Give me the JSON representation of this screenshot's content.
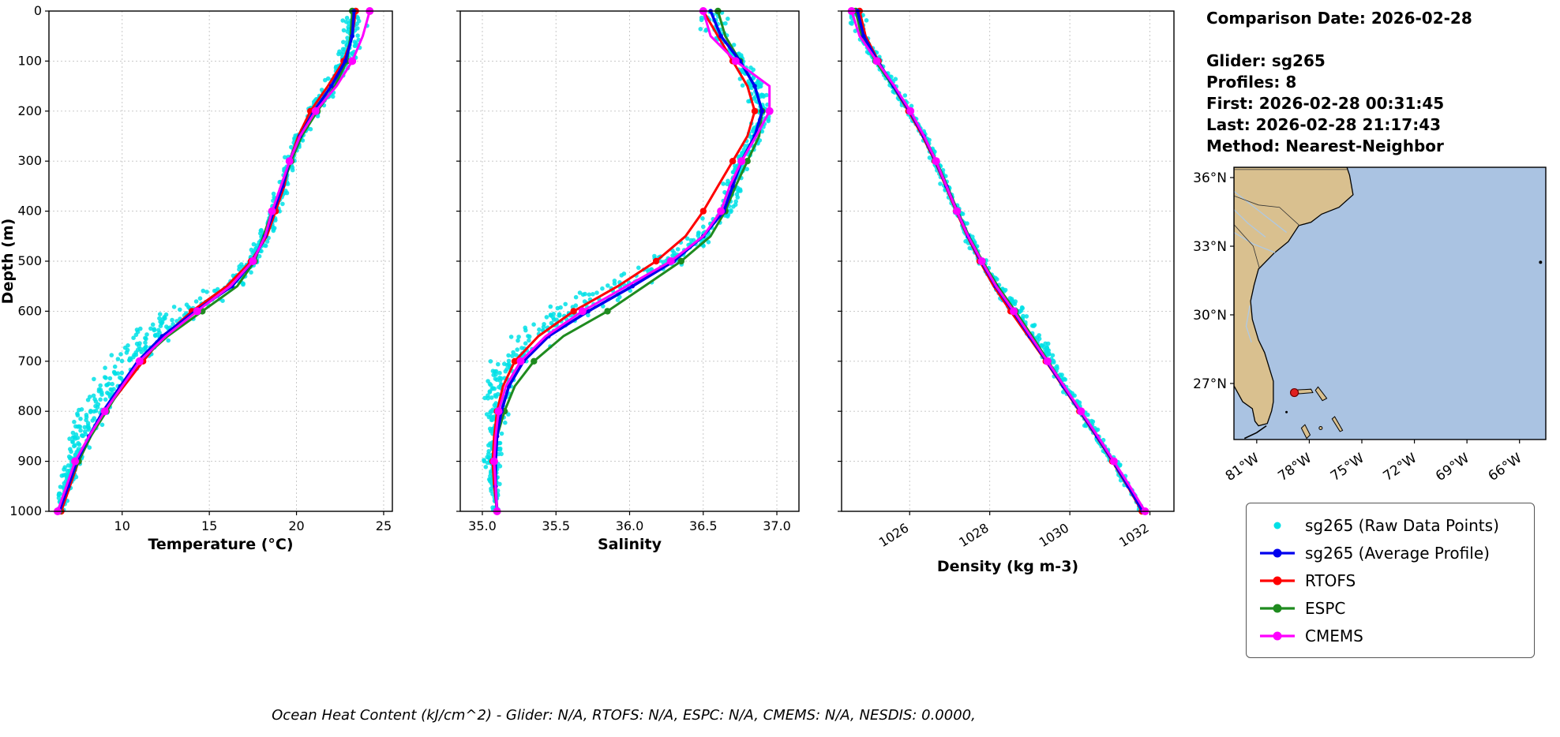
{
  "info": {
    "title": "Comparison Date: 2026-02-28",
    "glider": "Glider: sg265",
    "profiles": "Profiles: 8",
    "first": "First: 2026-02-28 00:31:45",
    "last": "Last: 2026-02-28 21:17:43",
    "method": "Method: Nearest-Neighbor"
  },
  "footer": {
    "text": "Ocean Heat Content (kJ/cm^2) - Glider: N/A,  RTOFS: N/A,  ESPC: N/A,  CMEMS: N/A,  NESDIS: 0.0000,"
  },
  "legend": {
    "items": [
      {
        "label": "sg265 (Raw Data Points)",
        "color": "#00e0e6",
        "marker": "dot"
      },
      {
        "label": "sg265 (Average Profile)",
        "color": "#0000ee",
        "marker": "line-dot"
      },
      {
        "label": "RTOFS",
        "color": "#ff0000",
        "marker": "line-dot"
      },
      {
        "label": "ESPC",
        "color": "#1f8b1f",
        "marker": "line-dot"
      },
      {
        "label": "CMEMS",
        "color": "#ff00ff",
        "marker": "line-dot"
      }
    ]
  },
  "map": {
    "extent": {
      "lon_min": -82.3,
      "lon_max": -64.5,
      "lat_min": 24.55,
      "lat_max": 36.45
    },
    "lat_ticks": [
      {
        "v": 36,
        "label": "36°N"
      },
      {
        "v": 33,
        "label": "33°N"
      },
      {
        "v": 30,
        "label": "30°N"
      },
      {
        "v": 27,
        "label": "27°N"
      }
    ],
    "lon_ticks": [
      {
        "v": -81,
        "label": "81°W"
      },
      {
        "v": -78,
        "label": "78°W"
      },
      {
        "v": -75,
        "label": "75°W"
      },
      {
        "v": -72,
        "label": "72°W"
      },
      {
        "v": -69,
        "label": "69°W"
      },
      {
        "v": -66,
        "label": "66°W"
      }
    ],
    "colors": {
      "ocean": "#aac3e2",
      "land": "#d9c08f",
      "coast": "#000000",
      "river": "#b0c8e0",
      "border": "#333333",
      "marker": "#e02020",
      "marker_edge": "#700000"
    },
    "marker": {
      "lon": -78.85,
      "lat": 26.6
    }
  },
  "chart_data": [
    {
      "id": "temperature",
      "type": "line",
      "xlabel": "Temperature (°C)",
      "ylabel": "Depth (m)",
      "xlim": [
        5.8,
        25.5
      ],
      "ylim": [
        0,
        1000
      ],
      "xticks": [
        {
          "v": 10,
          "label": "10"
        },
        {
          "v": 15,
          "label": "15"
        },
        {
          "v": 20,
          "label": "20"
        },
        {
          "v": 25,
          "label": "25"
        }
      ],
      "yticks": [
        {
          "v": 0,
          "label": "0"
        },
        {
          "v": 100,
          "label": "100"
        },
        {
          "v": 200,
          "label": "200"
        },
        {
          "v": 300,
          "label": "300"
        },
        {
          "v": 400,
          "label": "400"
        },
        {
          "v": 500,
          "label": "500"
        },
        {
          "v": 600,
          "label": "600"
        },
        {
          "v": 700,
          "label": "700"
        },
        {
          "v": 800,
          "label": "800"
        },
        {
          "v": 900,
          "label": "900"
        },
        {
          "v": 1000,
          "label": "1000"
        }
      ],
      "depths": [
        0,
        50,
        100,
        150,
        200,
        250,
        300,
        350,
        400,
        450,
        500,
        550,
        600,
        650,
        700,
        750,
        800,
        850,
        900,
        950,
        1000
      ],
      "series": [
        {
          "name": "RTOFS",
          "color": "#ff0000",
          "width": 3,
          "marker_every": 2,
          "marker_r": 4.2,
          "values": [
            23.4,
            23.2,
            22.7,
            21.8,
            20.8,
            20.1,
            19.6,
            19.3,
            18.8,
            18.3,
            17.4,
            16.0,
            14.0,
            12.4,
            11.2,
            10.1,
            9.0,
            8.2,
            7.5,
            7.0,
            6.5
          ]
        },
        {
          "name": "ESPC",
          "color": "#1f8b1f",
          "width": 3,
          "marker_every": 2,
          "marker_r": 4.2,
          "values": [
            23.2,
            23.1,
            22.9,
            22.2,
            21.2,
            20.3,
            19.7,
            19.2,
            18.6,
            18.1,
            17.6,
            16.6,
            14.6,
            12.6,
            11.0,
            10.0,
            9.1,
            8.2,
            7.5,
            6.9,
            6.4
          ]
        },
        {
          "name": "sg265 (Average Profile)",
          "color": "#0000ee",
          "width": 3.5,
          "marker_every": 1,
          "marker_r": 2.8,
          "values": [
            23.3,
            23.2,
            22.8,
            22.0,
            21.0,
            20.2,
            19.6,
            19.2,
            18.7,
            18.2,
            17.5,
            16.3,
            14.2,
            12.3,
            10.9,
            9.9,
            8.9,
            8.1,
            7.4,
            6.9,
            6.4
          ]
        },
        {
          "name": "CMEMS",
          "color": "#ff00ff",
          "width": 3,
          "marker_every": 2,
          "marker_r": 5,
          "values": [
            24.2,
            23.8,
            23.2,
            22.3,
            21.1,
            20.2,
            19.6,
            19.1,
            18.6,
            18.2,
            17.5,
            16.2,
            14.3,
            12.5,
            11.0,
            10.0,
            9.0,
            8.1,
            7.3,
            6.8,
            6.3
          ]
        }
      ],
      "raw": {
        "name": "sg265 (Raw Data Points)",
        "color": "#00e0e6",
        "n": 650,
        "base": "sg265 (Average Profile)",
        "offset": [
          0,
          0,
          0,
          0,
          0,
          0,
          0,
          0,
          0,
          0,
          0,
          -0.2,
          -0.6,
          -0.8,
          -0.7,
          -0.6,
          -0.6,
          -0.4,
          -0.2,
          -0.1,
          0
        ],
        "spread": [
          0.8,
          0.5,
          0.4,
          0.35,
          0.3,
          0.28,
          0.25,
          0.25,
          0.3,
          0.3,
          0.35,
          0.7,
          1.0,
          0.9,
          0.8,
          0.75,
          0.7,
          0.6,
          0.4,
          0.3,
          0.2
        ]
      }
    },
    {
      "id": "salinity",
      "type": "line",
      "xlabel": "Salinity",
      "ylabel": "Depth (m)",
      "xlim": [
        34.85,
        37.15
      ],
      "ylim": [
        0,
        1000
      ],
      "xticks": [
        {
          "v": 35.0,
          "label": "35.0"
        },
        {
          "v": 35.5,
          "label": "35.5"
        },
        {
          "v": 36.0,
          "label": "36.0"
        },
        {
          "v": 36.5,
          "label": "36.5"
        },
        {
          "v": 37.0,
          "label": "37.0"
        }
      ],
      "yticks": [
        {
          "v": 0,
          "label": "0"
        },
        {
          "v": 100,
          "label": "100"
        },
        {
          "v": 200,
          "label": "200"
        },
        {
          "v": 300,
          "label": "300"
        },
        {
          "v": 400,
          "label": "400"
        },
        {
          "v": 500,
          "label": "500"
        },
        {
          "v": 600,
          "label": "600"
        },
        {
          "v": 700,
          "label": "700"
        },
        {
          "v": 800,
          "label": "800"
        },
        {
          "v": 900,
          "label": "900"
        },
        {
          "v": 1000,
          "label": "1000"
        }
      ],
      "depths": [
        0,
        50,
        100,
        150,
        200,
        250,
        300,
        350,
        400,
        450,
        500,
        550,
        600,
        650,
        700,
        750,
        800,
        850,
        900,
        950,
        1000
      ],
      "series": [
        {
          "name": "RTOFS",
          "color": "#ff0000",
          "width": 3,
          "marker_every": 2,
          "marker_r": 4.2,
          "values": [
            36.5,
            36.6,
            36.7,
            36.8,
            36.85,
            36.8,
            36.7,
            36.6,
            36.5,
            36.38,
            36.18,
            35.92,
            35.62,
            35.38,
            35.22,
            35.14,
            35.1,
            35.08,
            35.07,
            35.08,
            35.1
          ]
        },
        {
          "name": "ESPC",
          "color": "#1f8b1f",
          "width": 3,
          "marker_every": 2,
          "marker_r": 4.2,
          "values": [
            36.6,
            36.65,
            36.75,
            36.85,
            36.9,
            36.88,
            36.8,
            36.72,
            36.65,
            36.55,
            36.35,
            36.1,
            35.85,
            35.55,
            35.35,
            35.22,
            35.15,
            35.1,
            35.08,
            35.09,
            35.1
          ]
        },
        {
          "name": "sg265 (Average Profile)",
          "color": "#0000ee",
          "width": 3.5,
          "marker_every": 1,
          "marker_r": 2.8,
          "values": [
            36.55,
            36.62,
            36.75,
            36.85,
            36.9,
            36.85,
            36.76,
            36.7,
            36.64,
            36.5,
            36.3,
            36.02,
            35.72,
            35.45,
            35.28,
            35.18,
            35.13,
            35.1,
            35.09,
            35.09,
            35.1
          ]
        },
        {
          "name": "CMEMS",
          "color": "#ff00ff",
          "width": 3,
          "marker_every": 2,
          "marker_r": 5,
          "values": [
            36.5,
            36.55,
            36.72,
            36.95,
            36.95,
            36.86,
            36.76,
            36.68,
            36.62,
            36.5,
            36.28,
            35.98,
            35.68,
            35.43,
            35.26,
            35.16,
            35.11,
            35.09,
            35.08,
            35.09,
            35.1
          ]
        }
      ],
      "raw": {
        "name": "sg265 (Raw Data Points)",
        "color": "#00e0e6",
        "n": 650,
        "base": "sg265 (Average Profile)",
        "offset": [
          0,
          0,
          0,
          0,
          0,
          0,
          0,
          0,
          0,
          -0.02,
          -0.05,
          -0.1,
          -0.15,
          -0.12,
          -0.1,
          -0.08,
          -0.05,
          -0.03,
          -0.02,
          -0.01,
          0
        ],
        "spread": [
          0.1,
          0.07,
          0.05,
          0.05,
          0.05,
          0.04,
          0.04,
          0.05,
          0.06,
          0.07,
          0.09,
          0.13,
          0.16,
          0.13,
          0.1,
          0.08,
          0.06,
          0.05,
          0.04,
          0.03,
          0.02
        ]
      }
    },
    {
      "id": "density",
      "type": "line",
      "xlabel": "Density (kg m-3)",
      "ylabel": "Depth (m)",
      "xlim": [
        1024.3,
        1032.6
      ],
      "ylim": [
        0,
        1000
      ],
      "xticks": [
        {
          "v": 1026,
          "label": "1026"
        },
        {
          "v": 1028,
          "label": "1028"
        },
        {
          "v": 1030,
          "label": "1030"
        },
        {
          "v": 1032,
          "label": "1032"
        }
      ],
      "yticks": [
        {
          "v": 0,
          "label": "0"
        },
        {
          "v": 100,
          "label": "100"
        },
        {
          "v": 200,
          "label": "200"
        },
        {
          "v": 300,
          "label": "300"
        },
        {
          "v": 400,
          "label": "400"
        },
        {
          "v": 500,
          "label": "500"
        },
        {
          "v": 600,
          "label": "600"
        },
        {
          "v": 700,
          "label": "700"
        },
        {
          "v": 800,
          "label": "800"
        },
        {
          "v": 900,
          "label": "900"
        },
        {
          "v": 1000,
          "label": "1000"
        }
      ],
      "depths": [
        0,
        50,
        100,
        150,
        200,
        250,
        300,
        350,
        400,
        450,
        500,
        550,
        600,
        650,
        700,
        750,
        800,
        850,
        900,
        950,
        1000
      ],
      "series": [
        {
          "name": "RTOFS",
          "color": "#ff0000",
          "width": 3,
          "marker_every": 2,
          "marker_r": 4.2,
          "values": [
            1024.75,
            1024.9,
            1025.22,
            1025.58,
            1025.97,
            1026.32,
            1026.63,
            1026.9,
            1027.16,
            1027.44,
            1027.75,
            1028.1,
            1028.52,
            1028.96,
            1029.4,
            1029.82,
            1030.24,
            1030.66,
            1031.06,
            1031.44,
            1031.8
          ]
        },
        {
          "name": "ESPC",
          "color": "#1f8b1f",
          "width": 3,
          "marker_every": 2,
          "marker_r": 4.2,
          "values": [
            1024.65,
            1024.8,
            1025.15,
            1025.58,
            1026.0,
            1026.36,
            1026.67,
            1026.94,
            1027.2,
            1027.48,
            1027.82,
            1028.2,
            1028.64,
            1029.06,
            1029.46,
            1029.86,
            1030.28,
            1030.7,
            1031.1,
            1031.48,
            1031.85
          ]
        },
        {
          "name": "sg265 (Average Profile)",
          "color": "#0000ee",
          "width": 3.5,
          "marker_every": 1,
          "marker_r": 2.8,
          "values": [
            1024.7,
            1024.85,
            1025.2,
            1025.6,
            1026.0,
            1026.35,
            1026.65,
            1026.92,
            1027.18,
            1027.46,
            1027.78,
            1028.15,
            1028.58,
            1029.0,
            1029.42,
            1029.84,
            1030.26,
            1030.68,
            1031.08,
            1031.46,
            1031.82
          ]
        },
        {
          "name": "CMEMS",
          "color": "#ff00ff",
          "width": 3,
          "marker_every": 2,
          "marker_r": 5,
          "values": [
            1024.55,
            1024.75,
            1025.18,
            1025.62,
            1026.02,
            1026.36,
            1026.66,
            1026.92,
            1027.18,
            1027.46,
            1027.8,
            1028.16,
            1028.6,
            1029.02,
            1029.44,
            1029.86,
            1030.28,
            1030.7,
            1031.1,
            1031.5,
            1031.88
          ]
        }
      ],
      "raw": {
        "name": "sg265 (Raw Data Points)",
        "color": "#00e0e6",
        "n": 520,
        "base": "sg265 (Average Profile)",
        "offset": [
          0,
          0,
          0,
          0,
          0,
          0,
          0,
          0,
          0,
          0,
          0,
          0.05,
          0.1,
          0.15,
          0.1,
          0.05,
          0,
          0,
          0,
          0,
          0
        ],
        "spread": [
          0.18,
          0.12,
          0.1,
          0.1,
          0.08,
          0.08,
          0.08,
          0.08,
          0.08,
          0.08,
          0.1,
          0.12,
          0.16,
          0.16,
          0.12,
          0.1,
          0.1,
          0.08,
          0.08,
          0.06,
          0.05
        ]
      }
    }
  ]
}
